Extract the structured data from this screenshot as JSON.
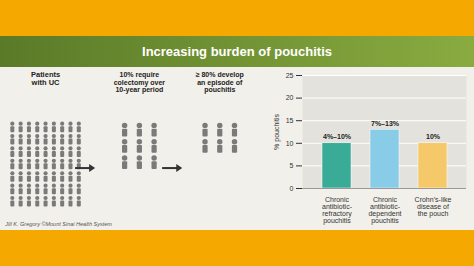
{
  "chart_data": {
    "type": "bar",
    "title": "Increasing burden of pouchitis",
    "categories": [
      "Chronic\nantibiotic-\nrefractory\npouchitis",
      "Chronic\nantibiotic-\ndependent\npouchitis",
      "Crohn’s-like\ndisease of\nthe pouch"
    ],
    "values": [
      10,
      13,
      10
    ],
    "value_labels": [
      "4%–10%",
      "7%–13%",
      "10%"
    ],
    "data_labels": true,
    "colors": [
      "#3aab96",
      "#88cce8",
      "#f5c96a"
    ],
    "ylabel": "% pouchitis",
    "ylim": [
      0,
      25
    ],
    "yticks": [
      0,
      5,
      10,
      15,
      20,
      25
    ],
    "grid": true,
    "annotations": [
      "Patients\nwith UC",
      "10% require\ncolectomy over\n10-year period",
      "≥ 80% develop\nan episode of\npouchitis",
      "Jill K. Gregory ©Mount Sinai Health System"
    ]
  }
}
